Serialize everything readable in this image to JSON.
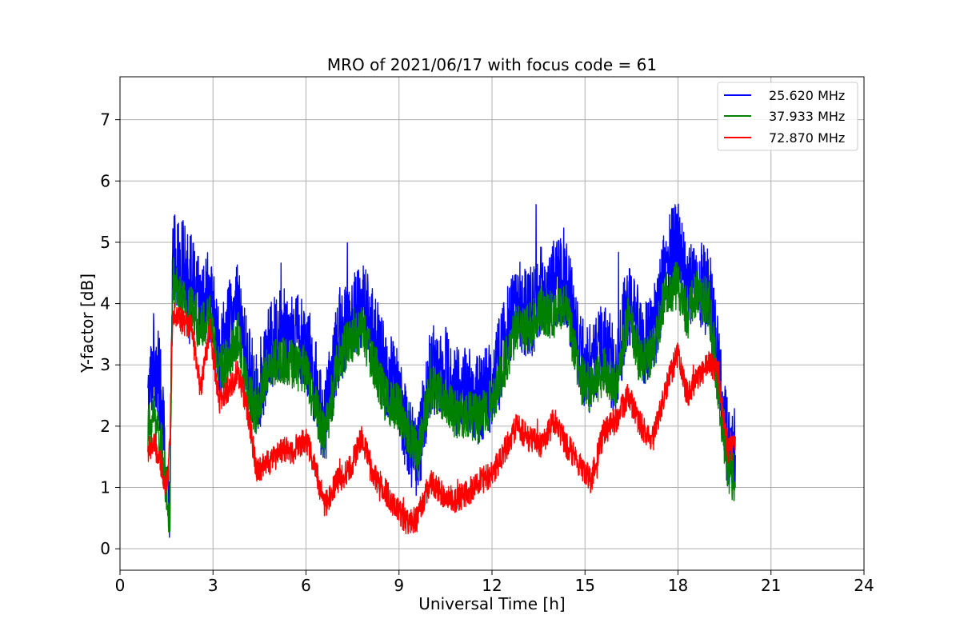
{
  "chart_data": {
    "type": "line",
    "title": "MRO of 2021/06/17 with focus code = 61",
    "xlabel": "Universal Time [h]",
    "ylabel": "Y-factor [dB]",
    "xlim": [
      0,
      24
    ],
    "ylim": [
      -0.35,
      7.7
    ],
    "xticks": [
      0,
      3,
      6,
      9,
      12,
      15,
      18,
      21,
      24
    ],
    "yticks": [
      0,
      1,
      2,
      3,
      4,
      5,
      6,
      7
    ],
    "grid": true,
    "legend_position": "top-right",
    "series": [
      {
        "name": "25.620 MHz",
        "color": "#0000ff",
        "x": [
          0.9,
          1.1,
          1.3,
          1.5,
          1.6,
          1.7,
          2.0,
          2.3,
          2.6,
          2.9,
          3.2,
          3.5,
          3.8,
          4.1,
          4.4,
          4.8,
          5.2,
          5.6,
          6.0,
          6.3,
          6.6,
          7.0,
          7.4,
          7.8,
          8.2,
          8.6,
          9.0,
          9.3,
          9.6,
          10.0,
          10.4,
          10.8,
          11.2,
          11.6,
          12.0,
          12.4,
          12.8,
          13.2,
          13.6,
          14.0,
          14.4,
          14.8,
          15.2,
          15.6,
          16.0,
          16.4,
          16.8,
          17.2,
          17.6,
          18.0,
          18.3,
          18.6,
          19.0,
          19.3,
          19.6,
          19.85
        ],
        "y": [
          2.3,
          3.2,
          2.6,
          1.2,
          0.3,
          4.8,
          4.6,
          4.4,
          3.9,
          4.1,
          3.2,
          3.6,
          3.9,
          3.0,
          2.5,
          3.2,
          3.6,
          3.5,
          3.4,
          2.7,
          2.0,
          3.3,
          3.8,
          4.0,
          3.5,
          2.8,
          2.6,
          1.8,
          1.4,
          2.9,
          3.0,
          2.6,
          2.6,
          2.4,
          2.7,
          3.4,
          4.0,
          3.8,
          4.2,
          4.3,
          4.4,
          3.2,
          2.9,
          3.3,
          2.9,
          4.1,
          3.4,
          3.5,
          4.6,
          5.0,
          4.3,
          4.3,
          4.2,
          3.0,
          1.7,
          1.6
        ]
      },
      {
        "name": "37.933 MHz",
        "color": "#008000",
        "x": [
          0.9,
          1.1,
          1.3,
          1.5,
          1.6,
          1.7,
          2.0,
          2.3,
          2.6,
          2.9,
          3.2,
          3.5,
          3.8,
          4.1,
          4.4,
          4.8,
          5.2,
          5.6,
          6.0,
          6.3,
          6.6,
          7.0,
          7.4,
          7.8,
          8.2,
          8.6,
          9.0,
          9.3,
          9.6,
          10.0,
          10.4,
          10.8,
          11.2,
          11.6,
          12.0,
          12.4,
          12.8,
          13.2,
          13.6,
          14.0,
          14.4,
          14.8,
          15.2,
          15.6,
          16.0,
          16.4,
          16.8,
          17.2,
          17.6,
          18.0,
          18.3,
          18.6,
          19.0,
          19.3,
          19.6,
          19.85
        ],
        "y": [
          1.9,
          2.2,
          1.8,
          1.0,
          0.2,
          4.4,
          4.0,
          3.9,
          3.6,
          3.8,
          2.9,
          3.1,
          3.5,
          2.6,
          2.2,
          3.0,
          3.1,
          3.0,
          2.9,
          2.3,
          1.8,
          3.0,
          3.4,
          3.6,
          3.0,
          2.4,
          2.3,
          1.9,
          1.5,
          2.6,
          2.5,
          2.2,
          2.2,
          2.1,
          2.4,
          3.0,
          3.6,
          3.6,
          3.9,
          3.8,
          4.0,
          2.8,
          2.6,
          2.9,
          2.7,
          3.8,
          3.0,
          3.2,
          4.2,
          4.3,
          3.8,
          4.2,
          4.0,
          2.6,
          1.3,
          1.1
        ]
      },
      {
        "name": "72.870 MHz",
        "color": "#ff0000",
        "x": [
          0.9,
          1.1,
          1.3,
          1.5,
          1.6,
          1.7,
          2.0,
          2.3,
          2.6,
          2.9,
          3.2,
          3.5,
          3.8,
          4.1,
          4.4,
          4.8,
          5.2,
          5.6,
          6.0,
          6.3,
          6.6,
          7.0,
          7.4,
          7.8,
          8.2,
          8.6,
          9.0,
          9.3,
          9.6,
          10.0,
          10.4,
          10.8,
          11.2,
          11.6,
          12.0,
          12.4,
          12.8,
          13.2,
          13.6,
          14.0,
          14.4,
          14.8,
          15.2,
          15.6,
          16.0,
          16.4,
          16.8,
          17.2,
          17.6,
          18.0,
          18.3,
          18.6,
          19.0,
          19.3,
          19.6,
          19.85
        ],
        "y": [
          1.6,
          1.7,
          1.4,
          1.0,
          1.6,
          3.9,
          3.7,
          3.6,
          2.6,
          3.6,
          2.4,
          2.6,
          2.9,
          2.3,
          1.3,
          1.4,
          1.6,
          1.6,
          1.8,
          1.3,
          0.7,
          1.1,
          1.3,
          1.8,
          1.2,
          0.9,
          0.6,
          0.4,
          0.5,
          1.1,
          0.9,
          0.8,
          0.9,
          1.1,
          1.2,
          1.6,
          2.0,
          1.8,
          1.7,
          2.1,
          1.7,
          1.4,
          1.1,
          1.9,
          2.1,
          2.5,
          2.0,
          1.8,
          2.6,
          3.2,
          2.5,
          2.8,
          3.0,
          2.9,
          1.6,
          1.7
        ]
      }
    ]
  }
}
